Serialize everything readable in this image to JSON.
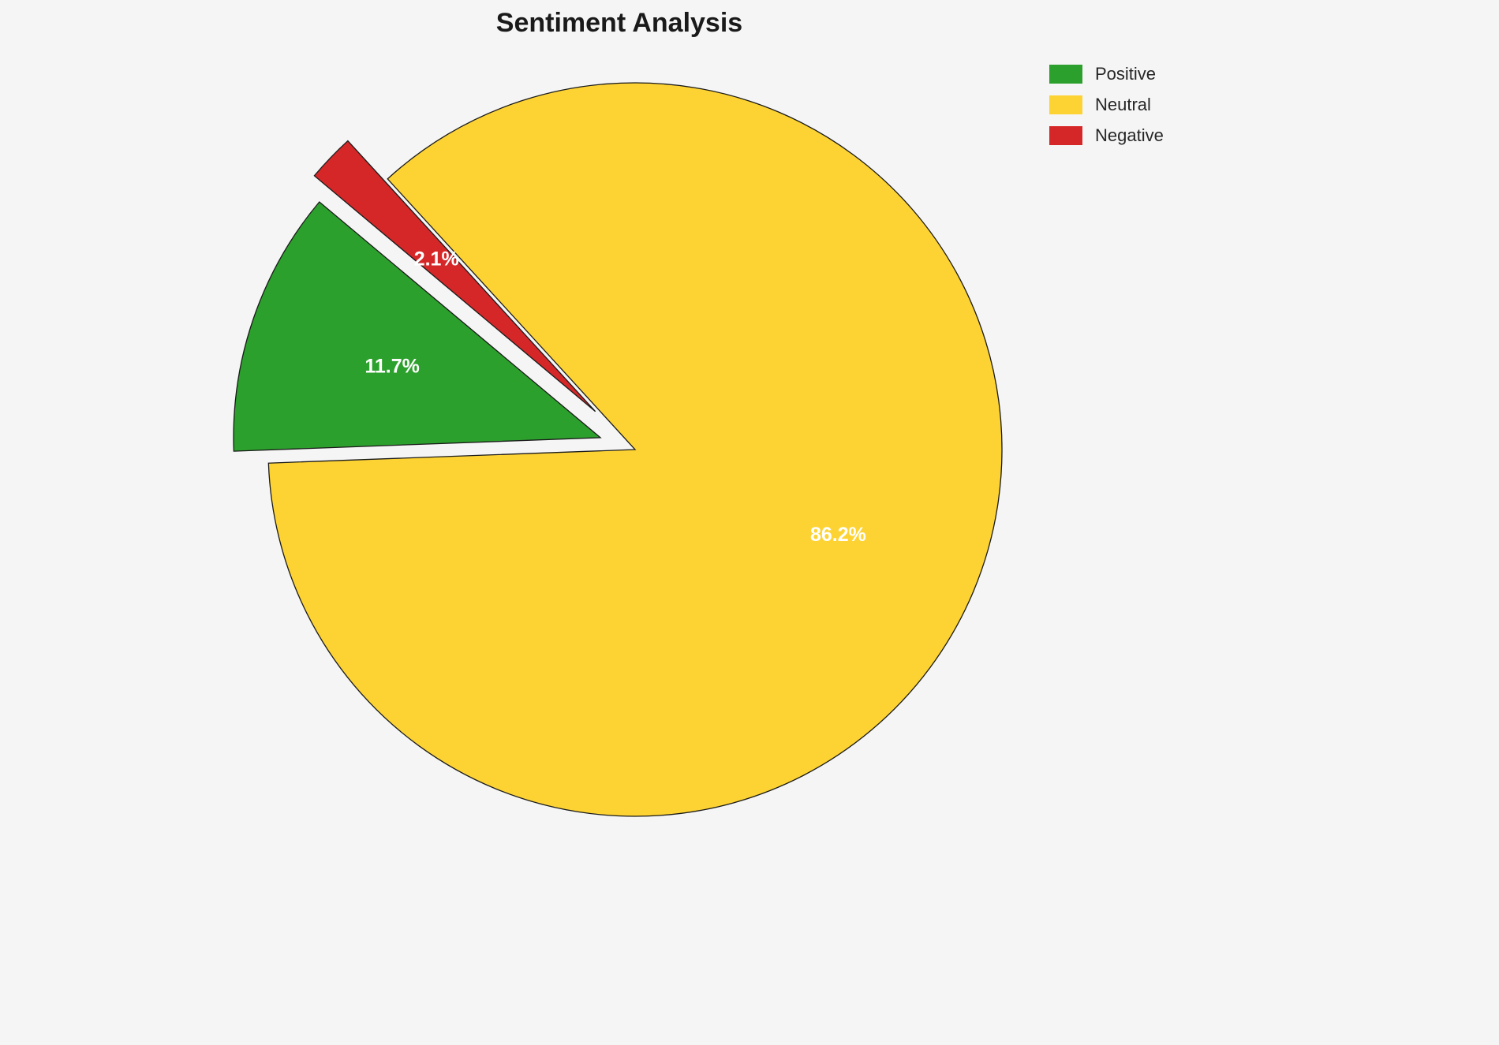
{
  "chart_data": {
    "type": "pie",
    "title": "Sentiment Analysis",
    "labels": [
      "Positive",
      "Neutral",
      "Negative"
    ],
    "values": [
      11.7,
      86.2,
      2.1
    ],
    "pct_labels": [
      "11.7%",
      "86.2%",
      "2.1%"
    ],
    "colors": [
      "#2ca02c",
      "#fdd334",
      "#d62728"
    ],
    "edge_color": "#1a1a1a",
    "pct_label_color": "#ffffff",
    "background_color": "#f5f5f5",
    "startangle": 140,
    "counterclock": true,
    "explode": [
      0.1,
      0,
      0.15
    ],
    "pctdistance": 0.6,
    "legend_position": "upper right"
  },
  "legend": {
    "items": [
      {
        "label": "Positive"
      },
      {
        "label": "Neutral"
      },
      {
        "label": "Negative"
      }
    ]
  }
}
